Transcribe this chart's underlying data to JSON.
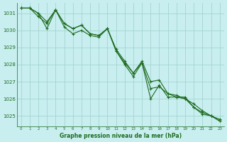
{
  "title": "Graphe pression niveau de la mer (hPa)",
  "bg_color": "#c8eef0",
  "line_color": "#1e6b1e",
  "grid_color": "#9ecfcc",
  "text_color": "#1e6b1e",
  "xlim": [
    -0.5,
    23.5
  ],
  "ylim": [
    1024.4,
    1031.6
  ],
  "yticks": [
    1025,
    1026,
    1027,
    1028,
    1029,
    1030,
    1031
  ],
  "xticks": [
    0,
    1,
    2,
    3,
    4,
    5,
    6,
    7,
    8,
    9,
    10,
    11,
    12,
    13,
    14,
    15,
    16,
    17,
    18,
    19,
    20,
    21,
    22,
    23
  ],
  "series1_x": [
    0,
    1,
    2,
    3,
    4,
    5,
    6,
    7,
    8,
    9,
    10,
    11,
    12,
    13,
    14,
    15,
    16,
    17,
    18,
    19,
    20,
    21,
    22,
    23
  ],
  "series1_y": [
    1031.3,
    1031.3,
    1031.0,
    1030.1,
    1031.2,
    1030.4,
    1030.1,
    1030.3,
    1029.8,
    1029.7,
    1030.1,
    1028.8,
    1028.0,
    1027.3,
    1028.1,
    1026.6,
    1026.7,
    1026.3,
    1026.1,
    1026.0,
    1025.5,
    1025.1,
    1025.0,
    1024.7
  ],
  "series2_x": [
    0,
    1,
    2,
    3,
    4,
    5,
    6,
    7,
    8,
    9,
    10,
    11,
    12,
    13,
    14,
    15,
    16,
    17,
    18,
    19,
    20,
    21,
    22,
    23
  ],
  "series2_y": [
    1031.3,
    1031.3,
    1031.0,
    1030.5,
    1031.2,
    1030.2,
    1029.8,
    1030.0,
    1029.7,
    1029.6,
    1030.1,
    1028.8,
    1028.1,
    1027.5,
    1028.2,
    1027.0,
    1027.1,
    1026.3,
    1026.2,
    1026.0,
    1025.7,
    1025.3,
    1025.0,
    1024.8
  ],
  "series3_x": [
    0,
    1,
    2,
    3,
    4,
    5,
    6,
    7,
    8,
    9,
    10,
    11,
    12,
    13,
    14,
    15,
    16,
    17,
    18,
    19,
    20,
    21,
    22,
    23
  ],
  "series3_y": [
    1031.3,
    1031.3,
    1030.8,
    1030.4,
    1031.2,
    1030.4,
    1030.1,
    1030.3,
    1029.8,
    1029.7,
    1030.1,
    1028.9,
    1028.2,
    1027.5,
    1028.1,
    1026.0,
    1026.8,
    1026.1,
    1026.1,
    1026.1,
    1025.5,
    1025.2,
    1025.0,
    1024.7
  ]
}
